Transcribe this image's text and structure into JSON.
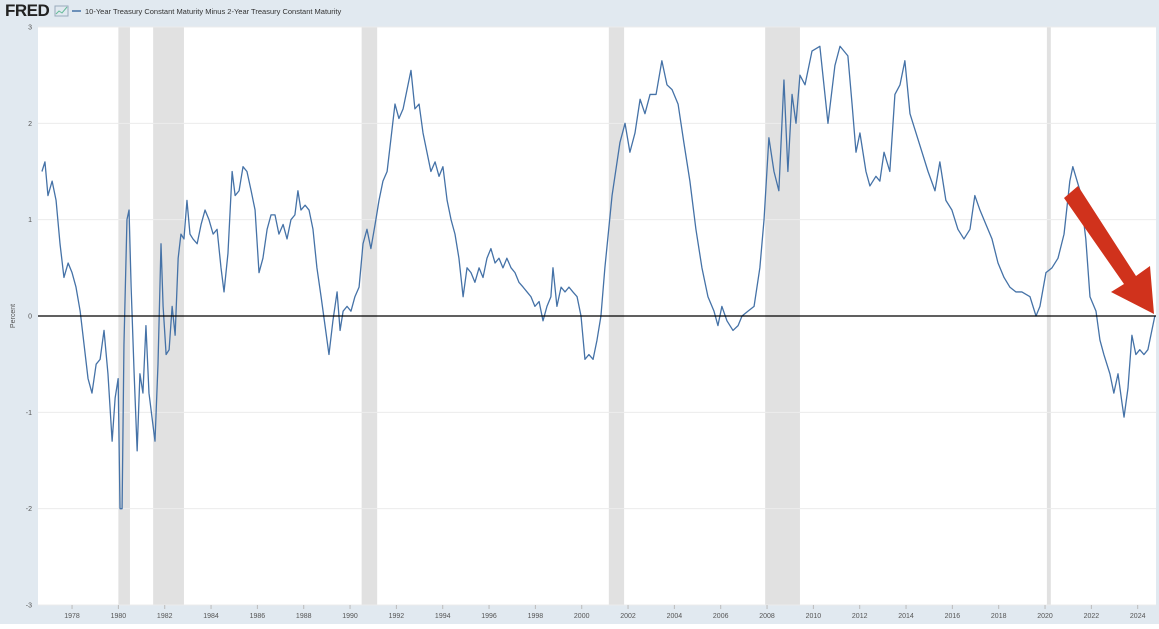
{
  "chart_data": {
    "type": "line",
    "logo": "FRED",
    "y_label": "Percent",
    "xlim": [
      1976.53,
      2024.79
    ],
    "ylim": [
      -3,
      3
    ],
    "xticks": [
      1978,
      1980,
      1982,
      1984,
      1986,
      1988,
      1990,
      1992,
      1994,
      1996,
      1998,
      2000,
      2002,
      2004,
      2006,
      2008,
      2010,
      2012,
      2014,
      2016,
      2018,
      2020,
      2022,
      2024
    ],
    "yticks": [
      -3,
      -2,
      -1,
      0,
      1,
      2,
      3
    ],
    "grid": true,
    "zero_line": 0,
    "recessions": [
      [
        1980.0,
        1980.5
      ],
      [
        1981.5,
        1982.83
      ],
      [
        1990.5,
        1991.17
      ],
      [
        2001.17,
        2001.83
      ],
      [
        2007.92,
        2009.42
      ],
      [
        2020.08,
        2020.25
      ]
    ],
    "x": [
      1976.7,
      1976.83,
      1976.96,
      1977.14,
      1977.31,
      1977.48,
      1977.65,
      1977.83,
      1978.0,
      1978.17,
      1978.35,
      1978.52,
      1978.69,
      1978.86,
      1979.04,
      1979.21,
      1979.38,
      1979.55,
      1979.73,
      1979.86,
      1979.99,
      1980.07,
      1980.16,
      1980.24,
      1980.37,
      1980.46,
      1980.55,
      1980.68,
      1980.81,
      1980.93,
      1981.06,
      1981.19,
      1981.32,
      1981.45,
      1981.58,
      1981.71,
      1981.84,
      1981.93,
      1982.06,
      1982.19,
      1982.32,
      1982.45,
      1982.58,
      1982.7,
      1982.83,
      1982.96,
      1983.09,
      1983.22,
      1983.4,
      1983.57,
      1983.74,
      1983.91,
      1984.09,
      1984.26,
      1984.43,
      1984.56,
      1984.73,
      1984.91,
      1985.04,
      1985.21,
      1985.38,
      1985.55,
      1985.73,
      1985.9,
      1986.07,
      1986.24,
      1986.42,
      1986.59,
      1986.76,
      1986.93,
      1987.11,
      1987.28,
      1987.45,
      1987.62,
      1987.75,
      1987.88,
      1988.06,
      1988.23,
      1988.4,
      1988.57,
      1988.75,
      1988.92,
      1989.09,
      1989.26,
      1989.44,
      1989.57,
      1989.7,
      1989.87,
      1990.04,
      1990.21,
      1990.39,
      1990.56,
      1990.73,
      1990.9,
      1991.08,
      1991.25,
      1991.42,
      1991.6,
      1991.77,
      1991.94,
      1992.11,
      1992.29,
      1992.46,
      1992.63,
      1992.8,
      1992.98,
      1993.15,
      1993.32,
      1993.49,
      1993.67,
      1993.84,
      1994.01,
      1994.19,
      1994.36,
      1994.53,
      1994.7,
      1994.88,
      1995.05,
      1995.22,
      1995.39,
      1995.57,
      1995.74,
      1995.91,
      1996.08,
      1996.26,
      1996.43,
      1996.6,
      1996.77,
      1996.95,
      1997.12,
      1997.29,
      1997.47,
      1997.64,
      1997.81,
      1997.98,
      1998.16,
      1998.33,
      1998.5,
      1998.67,
      1998.76,
      1998.93,
      1999.11,
      1999.28,
      1999.45,
      1999.62,
      1999.8,
      1999.97,
      2000.14,
      2000.31,
      2000.49,
      2000.66,
      2000.83,
      2001.0,
      2001.31,
      2001.65,
      2001.87,
      2002.08,
      2002.3,
      2002.52,
      2002.73,
      2002.95,
      2003.21,
      2003.46,
      2003.68,
      2003.9,
      2004.16,
      2004.41,
      2004.67,
      2004.93,
      2005.19,
      2005.45,
      2005.71,
      2005.88,
      2006.05,
      2006.27,
      2006.53,
      2006.75,
      2006.92,
      2007.18,
      2007.44,
      2007.69,
      2007.87,
      2008.08,
      2008.3,
      2008.51,
      2008.73,
      2008.9,
      2009.08,
      2009.25,
      2009.42,
      2009.64,
      2009.94,
      2010.28,
      2010.63,
      2010.93,
      2011.15,
      2011.49,
      2011.67,
      2011.84,
      2012.01,
      2012.27,
      2012.44,
      2012.7,
      2012.87,
      2013.05,
      2013.3,
      2013.52,
      2013.74,
      2013.95,
      2014.17,
      2014.43,
      2014.69,
      2014.95,
      2015.25,
      2015.46,
      2015.72,
      2015.98,
      2016.24,
      2016.5,
      2016.76,
      2016.97,
      2017.19,
      2017.45,
      2017.71,
      2017.97,
      2018.23,
      2018.48,
      2018.74,
      2019.0,
      2019.35,
      2019.61,
      2019.78,
      2020.04,
      2020.3,
      2020.56,
      2020.82,
      2021.07,
      2021.2,
      2021.51,
      2021.76,
      2021.94,
      2022.2,
      2022.37,
      2022.54,
      2022.8,
      2022.97,
      2023.15,
      2023.32,
      2023.41,
      2023.58,
      2023.75,
      2023.92,
      2024.09,
      2024.27,
      2024.44,
      2024.61,
      2024.74
    ],
    "series": [
      {
        "name": "10-Year Treasury Constant Maturity Minus 2-Year Treasury Constant Maturity",
        "color": "#4572a7",
        "values": [
          1.5,
          1.6,
          1.25,
          1.4,
          1.2,
          0.75,
          0.4,
          0.55,
          0.45,
          0.3,
          0.05,
          -0.3,
          -0.65,
          -0.8,
          -0.5,
          -0.45,
          -0.15,
          -0.6,
          -1.3,
          -0.85,
          -0.65,
          -2.0,
          -2.0,
          -0.3,
          1.0,
          1.1,
          0.3,
          -0.6,
          -1.4,
          -0.6,
          -0.8,
          -0.1,
          -0.8,
          -1.05,
          -1.3,
          -0.5,
          0.75,
          0.1,
          -0.4,
          -0.35,
          0.1,
          -0.2,
          0.6,
          0.85,
          0.8,
          1.2,
          0.85,
          0.8,
          0.75,
          0.95,
          1.1,
          1.0,
          0.85,
          0.9,
          0.5,
          0.25,
          0.65,
          1.5,
          1.25,
          1.3,
          1.55,
          1.5,
          1.3,
          1.1,
          0.45,
          0.6,
          0.9,
          1.05,
          1.05,
          0.85,
          0.95,
          0.8,
          1.0,
          1.05,
          1.3,
          1.1,
          1.15,
          1.1,
          0.9,
          0.5,
          0.2,
          -0.1,
          -0.4,
          -0.05,
          0.25,
          -0.15,
          0.05,
          0.1,
          0.05,
          0.2,
          0.3,
          0.75,
          0.9,
          0.7,
          0.95,
          1.2,
          1.4,
          1.5,
          1.85,
          2.2,
          2.05,
          2.15,
          2.35,
          2.55,
          2.15,
          2.2,
          1.9,
          1.7,
          1.5,
          1.6,
          1.45,
          1.55,
          1.2,
          1.0,
          0.85,
          0.6,
          0.2,
          0.5,
          0.45,
          0.35,
          0.5,
          0.4,
          0.6,
          0.7,
          0.55,
          0.6,
          0.5,
          0.6,
          0.5,
          0.45,
          0.35,
          0.3,
          0.25,
          0.2,
          0.1,
          0.15,
          -0.05,
          0.1,
          0.2,
          0.5,
          0.1,
          0.3,
          0.25,
          0.3,
          0.25,
          0.2,
          0.0,
          -0.45,
          -0.4,
          -0.45,
          -0.25,
          0.0,
          0.5,
          1.25,
          1.8,
          2.0,
          1.7,
          1.9,
          2.25,
          2.1,
          2.3,
          2.3,
          2.65,
          2.4,
          2.35,
          2.2,
          1.8,
          1.4,
          0.9,
          0.5,
          0.2,
          0.05,
          -0.1,
          0.1,
          -0.05,
          -0.15,
          -0.1,
          0.0,
          0.05,
          0.1,
          0.5,
          1.0,
          1.85,
          1.5,
          1.3,
          2.45,
          1.5,
          2.3,
          2.0,
          2.5,
          2.4,
          2.75,
          2.8,
          2.0,
          2.6,
          2.8,
          2.7,
          2.2,
          1.7,
          1.9,
          1.5,
          1.35,
          1.45,
          1.4,
          1.7,
          1.5,
          2.3,
          2.4,
          2.65,
          2.1,
          1.9,
          1.7,
          1.5,
          1.3,
          1.6,
          1.2,
          1.1,
          0.9,
          0.8,
          0.9,
          1.25,
          1.1,
          0.95,
          0.8,
          0.55,
          0.4,
          0.3,
          0.25,
          0.25,
          0.2,
          0.0,
          0.1,
          0.45,
          0.5,
          0.6,
          0.85,
          1.4,
          1.55,
          1.3,
          0.8,
          0.2,
          0.05,
          -0.25,
          -0.4,
          -0.6,
          -0.8,
          -0.6,
          -0.9,
          -1.05,
          -0.75,
          -0.2,
          -0.4,
          -0.35,
          -0.4,
          -0.35,
          -0.15,
          0.0
        ]
      }
    ]
  }
}
